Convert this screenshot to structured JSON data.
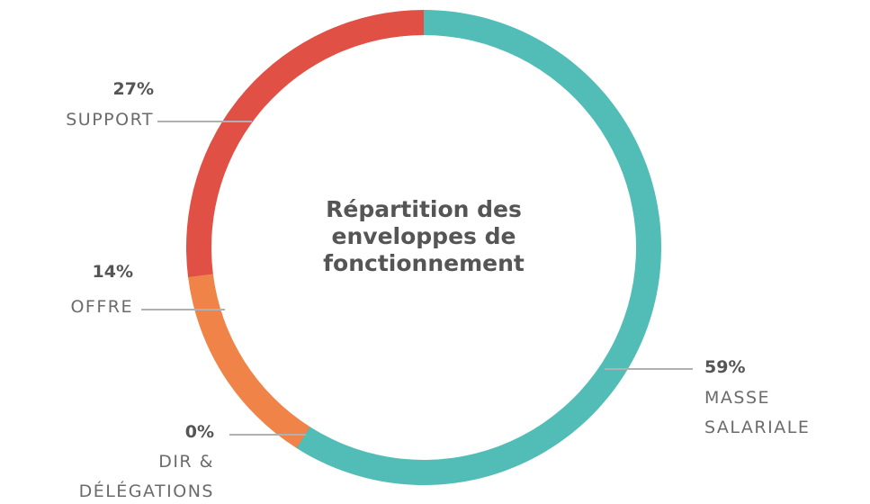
{
  "chart_data": {
    "type": "donut",
    "title": "Répartition des enveloppes de fonctionnement",
    "categories": [
      "MASSE SALARIALE",
      "DIR & DÉLÉGATIONS",
      "OFFRE",
      "SUPPORT"
    ],
    "values": [
      59,
      0,
      14,
      27
    ],
    "value_labels": [
      "59%",
      "0%",
      "14%",
      "27%"
    ],
    "colors": [
      "#52bcb6",
      "#8a8a8a",
      "#f08448",
      "#e05045"
    ]
  }
}
